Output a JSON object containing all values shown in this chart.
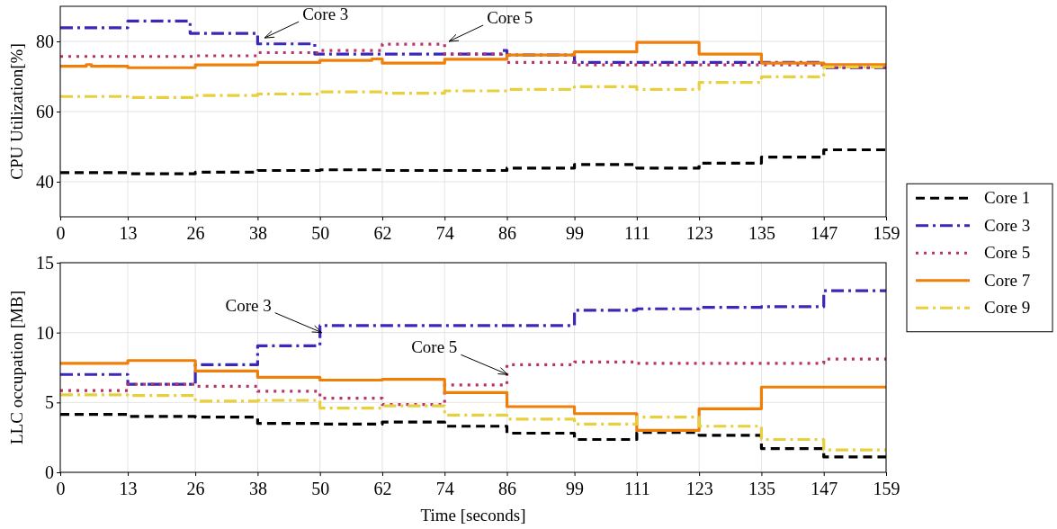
{
  "chart_data": [
    {
      "type": "step",
      "ylabel": "CPU Utilization[%]",
      "xlim": [
        0,
        159
      ],
      "xticks": [
        0,
        13,
        26,
        38,
        50,
        62,
        74,
        86,
        99,
        111,
        123,
        135,
        147,
        159
      ],
      "ylim": [
        30,
        90
      ],
      "yticks": [
        40,
        60,
        80
      ],
      "grid": true,
      "legend": "right",
      "annotations": [
        {
          "text": "Core 3",
          "x": 39,
          "y": 81
        },
        {
          "text": "Core 5",
          "x": 74.5,
          "y": 80
        }
      ],
      "series": [
        {
          "name": "Core 1",
          "color": "#000000",
          "line_style": "dashed",
          "x": [
            0,
            13,
            26,
            38,
            50,
            62,
            74,
            86,
            99,
            111,
            123,
            135,
            147,
            159
          ],
          "values": [
            42.6,
            42.3,
            42.7,
            43.2,
            43.4,
            43.2,
            43.2,
            43.9,
            44.9,
            43.9,
            45.3,
            47.0,
            49.1,
            49.1
          ]
        },
        {
          "name": "Core 3",
          "color": "#3b28b8",
          "line_style": "dashdot",
          "x": [
            0,
            13,
            25,
            38,
            49,
            85,
            86,
            99,
            147,
            159
          ],
          "values": [
            83.9,
            85.8,
            82.3,
            79.3,
            76.4,
            77.4,
            76.1,
            74.0,
            72.5,
            72.5
          ]
        },
        {
          "name": "Core 5",
          "color": "#b8336a",
          "line_style": "dotted",
          "x": [
            0,
            26,
            38,
            50,
            62,
            74,
            86,
            99,
            147,
            159
          ],
          "values": [
            75.7,
            75.9,
            76.8,
            77.4,
            79.2,
            76.4,
            74.0,
            73.3,
            72.5,
            72.5
          ]
        },
        {
          "name": "Core 7",
          "color": "#f07f0a",
          "line_style": "solid",
          "x": [
            0,
            5,
            6,
            13,
            26,
            38,
            50,
            60,
            62,
            74,
            86,
            99,
            111,
            123,
            135,
            147,
            159
          ],
          "values": [
            72.9,
            73.4,
            72.9,
            72.5,
            73.3,
            74.0,
            74.6,
            75.0,
            73.8,
            74.9,
            76.1,
            77.0,
            79.7,
            76.4,
            73.8,
            73.4,
            73.4
          ]
        },
        {
          "name": "Core 9",
          "color": "#e8cf3e",
          "line_style": "dashdot",
          "x": [
            0,
            13,
            26,
            38,
            50,
            62,
            74,
            86,
            99,
            111,
            123,
            135,
            147,
            159
          ],
          "values": [
            64.3,
            64.0,
            64.6,
            65.0,
            65.6,
            65.2,
            65.9,
            66.3,
            67.1,
            66.3,
            68.3,
            69.9,
            72.7,
            72.7
          ]
        }
      ]
    },
    {
      "type": "step",
      "xlabel": "Time [seconds]",
      "ylabel": "LLC occupation [MB]",
      "xlim": [
        0,
        159
      ],
      "xticks": [
        0,
        13,
        26,
        38,
        50,
        62,
        74,
        86,
        99,
        111,
        123,
        135,
        147,
        159
      ],
      "ylim": [
        0,
        15
      ],
      "yticks": [
        0,
        5,
        10,
        15
      ],
      "grid": true,
      "annotations": [
        {
          "text": "Core 3",
          "x": 50,
          "y": 10.0
        },
        {
          "text": "Core 5",
          "x": 85.8,
          "y": 7.0
        }
      ],
      "x": [
        0,
        13,
        26,
        38,
        50,
        62,
        74,
        86,
        99,
        111,
        123,
        135,
        147,
        159
      ],
      "series": [
        {
          "color": "#000000",
          "line_style": "dashed",
          "values": [
            4.15,
            4.0,
            3.95,
            3.5,
            3.45,
            3.6,
            3.3,
            2.8,
            2.35,
            2.85,
            2.65,
            1.7,
            1.1,
            1.1
          ]
        },
        {
          "color": "#3b28b8",
          "line_style": "dashdot",
          "values": [
            7.0,
            6.3,
            7.7,
            9.05,
            10.5,
            10.5,
            10.5,
            10.5,
            11.6,
            11.7,
            11.8,
            11.85,
            13.0,
            13.0
          ]
        },
        {
          "color": "#b8336a",
          "line_style": "dotted",
          "values": [
            5.85,
            6.3,
            6.15,
            5.8,
            5.3,
            4.85,
            6.25,
            7.7,
            7.9,
            7.8,
            7.8,
            7.8,
            8.1,
            8.1
          ]
        },
        {
          "color": "#f07f0a",
          "line_style": "solid",
          "values": [
            7.8,
            8.0,
            7.25,
            6.8,
            6.6,
            6.65,
            5.7,
            4.7,
            4.2,
            3.0,
            4.55,
            6.1,
            6.1,
            6.1
          ]
        },
        {
          "color": "#e8cf3e",
          "line_style": "dashdot",
          "values": [
            5.55,
            5.5,
            5.1,
            5.15,
            4.6,
            4.75,
            4.1,
            3.8,
            3.45,
            3.95,
            3.3,
            2.35,
            1.6,
            1.6
          ]
        }
      ]
    }
  ]
}
